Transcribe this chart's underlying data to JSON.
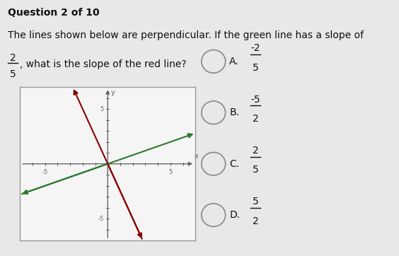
{
  "question_header": "Question 2 of 10",
  "question_line1": "The lines shown below are perpendicular. If the green line has a slope of",
  "question_frac_num": "2",
  "question_frac_den": "5",
  "question_line2": ", what is the slope of the red line?",
  "graph_xlim": [
    -7,
    7
  ],
  "graph_ylim": [
    -7,
    7
  ],
  "green_slope": 0.4,
  "red_slope": -2.5,
  "green_color": "#2d7a2d",
  "red_color": "#8B0000",
  "axis_color": "#666666",
  "graph_bg": "#f5f5f5",
  "graph_border": "#999999",
  "tick_labels": [
    -5,
    5
  ],
  "background_color": "#e8e8e8",
  "text_color": "#111111",
  "header_fontsize": 10,
  "body_fontsize": 10,
  "choices": [
    "A.",
    "B.",
    "C.",
    "D."
  ],
  "choice_fracs": [
    [
      "-2",
      "5"
    ],
    [
      "-5",
      "2"
    ],
    [
      "2",
      "5"
    ],
    [
      "5",
      "2"
    ]
  ]
}
